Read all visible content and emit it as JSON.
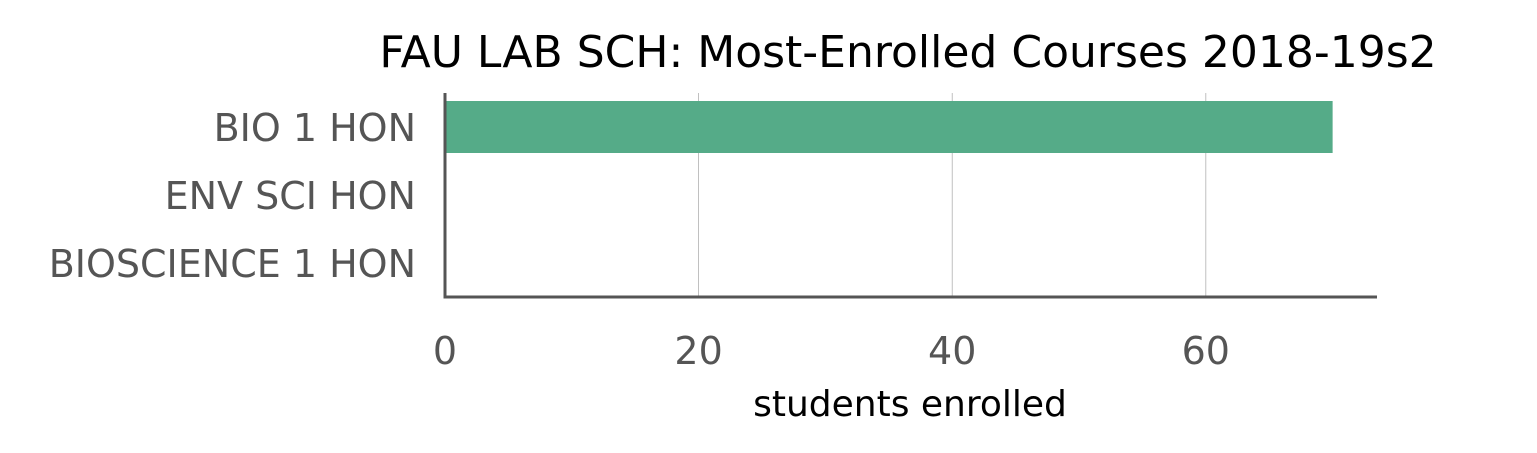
{
  "chart_data": {
    "type": "bar",
    "orientation": "horizontal",
    "title": "FAU LAB SCH: Most-Enrolled Courses 2018-19s2",
    "xlabel": "students enrolled",
    "ylabel": "",
    "categories": [
      "BIO 1 HON",
      "ENV SCI HON",
      "BIOSCIENCE 1 HON"
    ],
    "values": [
      70,
      0,
      0
    ],
    "xlim": [
      0,
      73.5
    ],
    "xticks": [
      0,
      20,
      40,
      60
    ],
    "grid": "vertical",
    "bar_color": "#55ab88",
    "legend": "none"
  }
}
